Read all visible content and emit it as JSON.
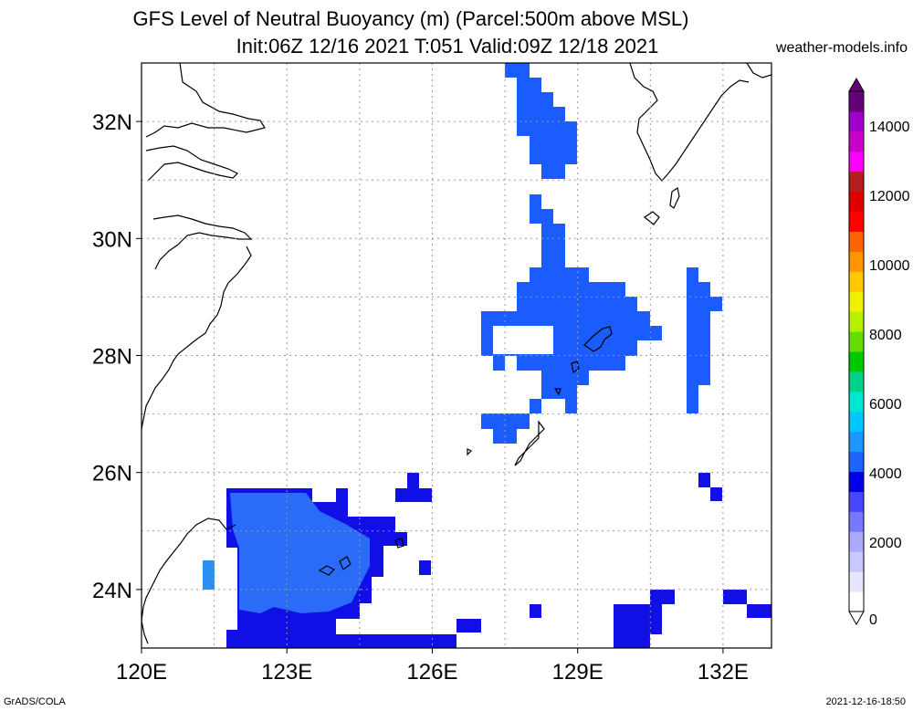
{
  "header": {
    "title_line1": "GFS Level of Neutral Buoyancy (m) (Parcel:500m above MSL)",
    "title_line2": "Init:06Z 12/16 2021 T:051 Valid:09Z 12/18 2021",
    "site": "weather-models.info"
  },
  "footer": {
    "left": "GrADS/COLA",
    "right": "2021-12-16-18:50"
  },
  "map": {
    "lon_range": [
      120,
      133
    ],
    "lat_range": [
      23,
      33
    ],
    "lon_labels": [
      "120E",
      "123E",
      "126E",
      "129E",
      "132E"
    ],
    "lon_values": [
      120,
      123,
      126,
      129,
      132
    ],
    "lat_labels": [
      "24N",
      "26N",
      "28N",
      "30N",
      "32N"
    ],
    "lat_values": [
      24,
      26,
      28,
      30,
      32
    ],
    "grid": true,
    "field_color": "#1a5cff",
    "field_dark": "#1010e6",
    "field_light": "#2a7af5"
  },
  "colorbar": {
    "labels": [
      "0",
      "2000",
      "4000",
      "6000",
      "8000",
      "10000",
      "12000",
      "14000"
    ],
    "values": [
      0,
      2000,
      4000,
      6000,
      8000,
      10000,
      12000,
      14000
    ],
    "colors": [
      "#ffffff",
      "#e6e6ff",
      "#c8c8ff",
      "#aaaaff",
      "#7878ff",
      "#4646ff",
      "#0000e6",
      "#1e64ff",
      "#1e96ff",
      "#00c8ff",
      "#00e6d2",
      "#00d28c",
      "#00c800",
      "#64dc00",
      "#b4f000",
      "#f0f000",
      "#ffc800",
      "#ff9600",
      "#ff6400",
      "#ff0000",
      "#dc0000",
      "#b41e1e",
      "#ff00ff",
      "#c800c8",
      "#a000c8",
      "#640078"
    ]
  }
}
